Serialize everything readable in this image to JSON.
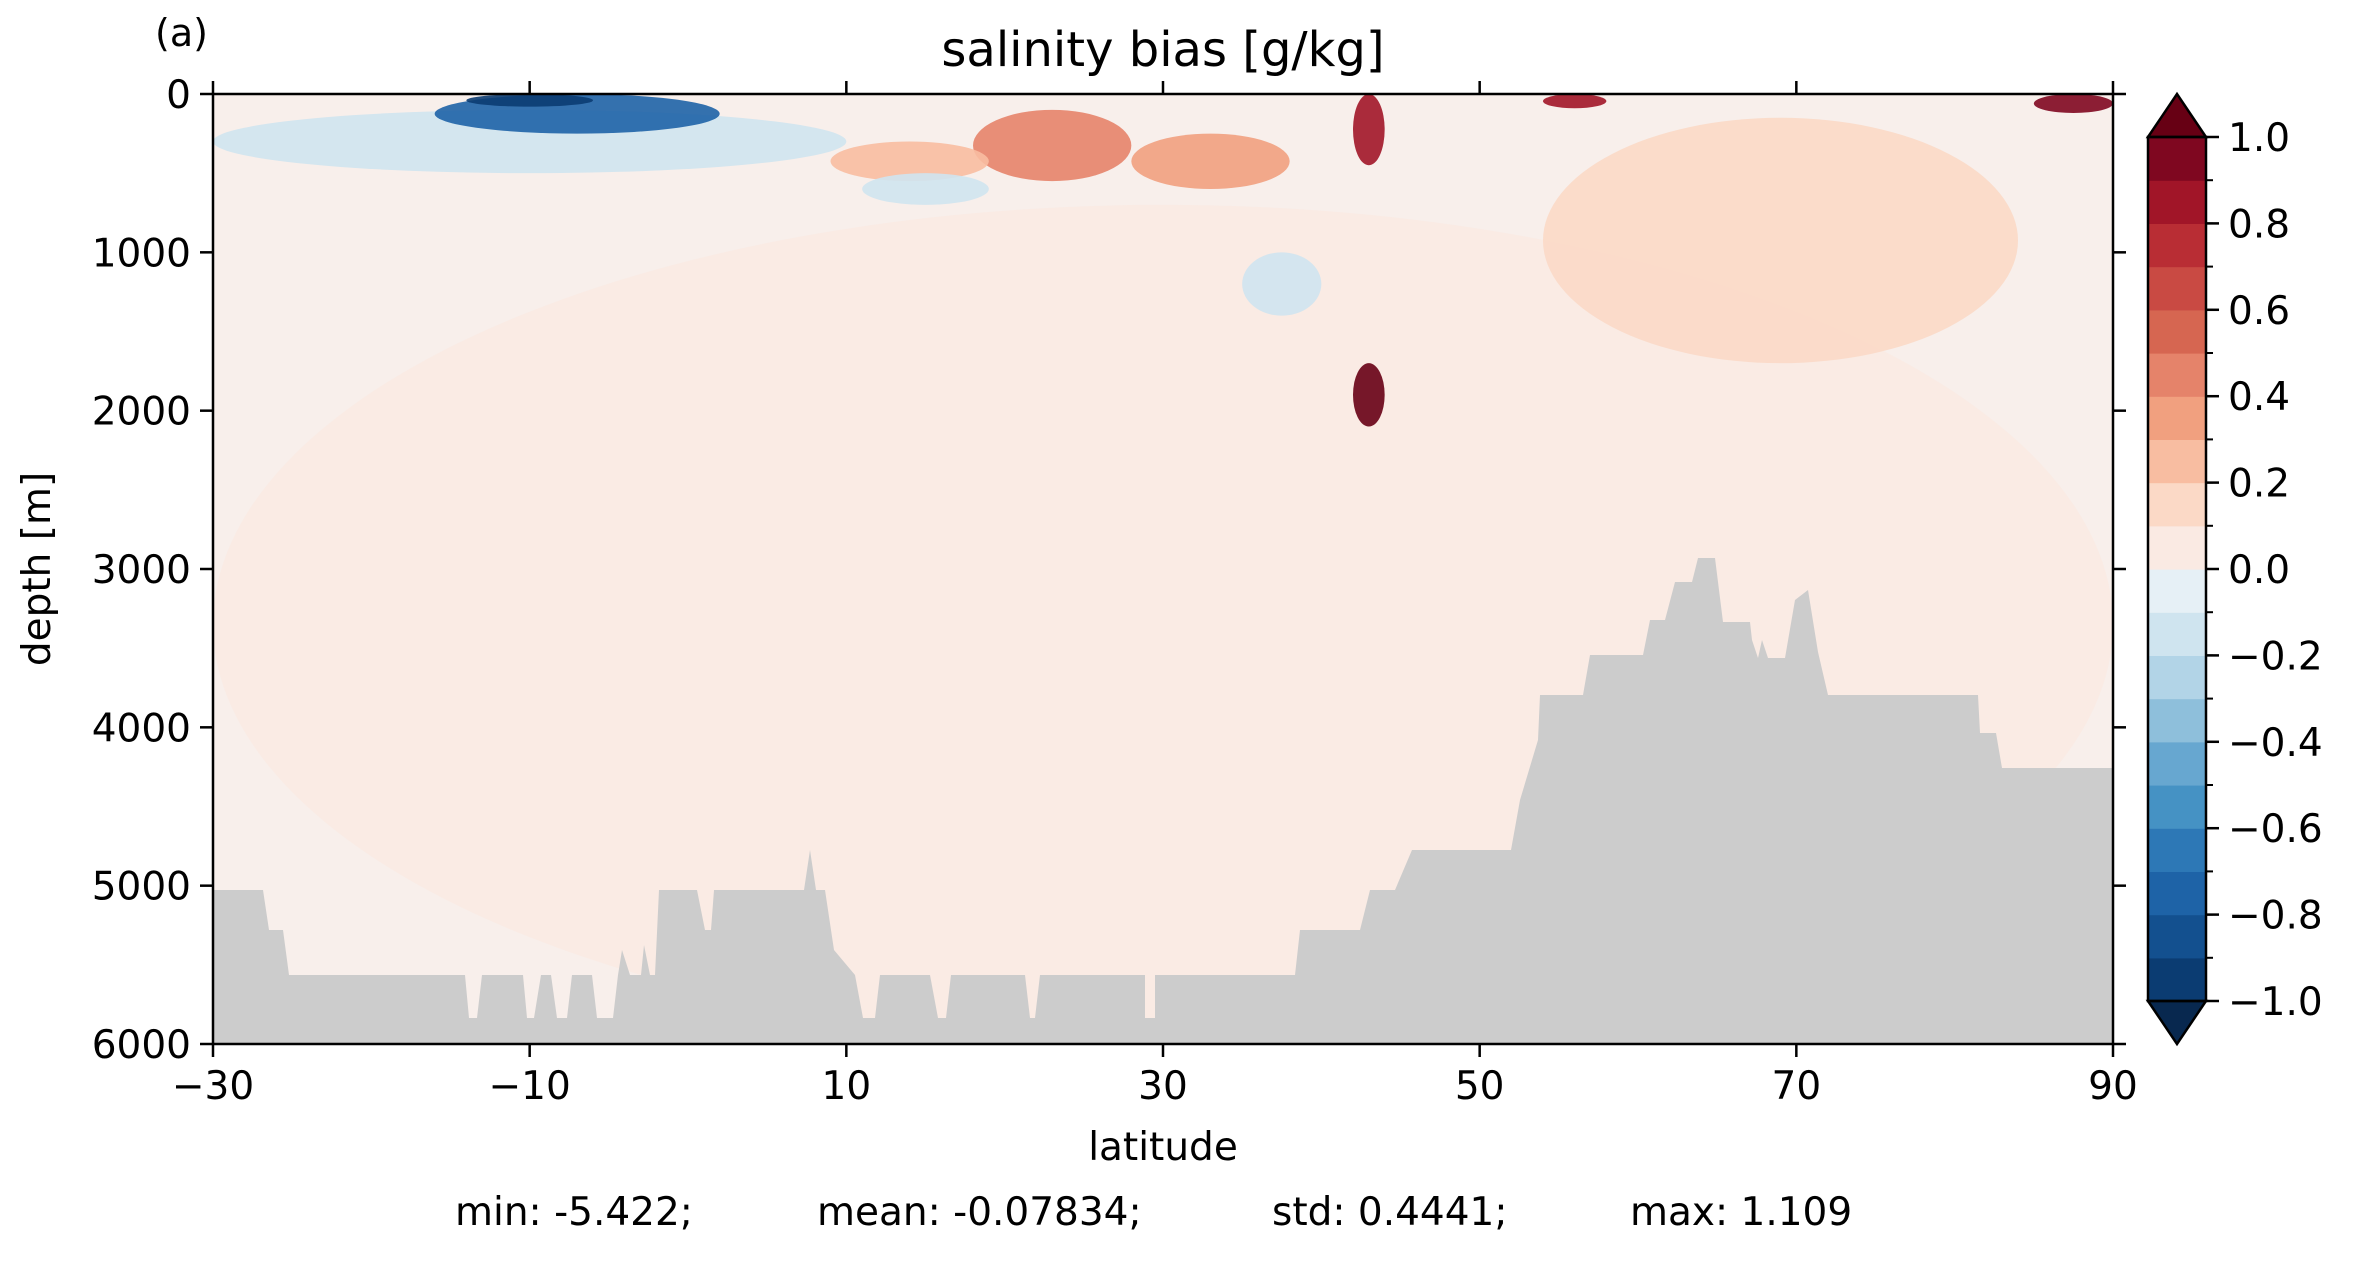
{
  "panel_label": "(a)",
  "chart_data": {
    "type": "heatmap",
    "title": "salinity bias [g/kg]",
    "xlabel": "latitude",
    "ylabel": "depth [m]",
    "xlim": [
      -30,
      90
    ],
    "ylim": [
      6000,
      0
    ],
    "x_ticks": [
      -30,
      -10,
      10,
      30,
      50,
      70,
      90
    ],
    "x_tick_labels": [
      "−30",
      "−10",
      "10",
      "30",
      "50",
      "70",
      "90"
    ],
    "y_ticks": [
      0,
      1000,
      2000,
      3000,
      4000,
      5000,
      6000
    ],
    "y_tick_labels": [
      "0",
      "1000",
      "2000",
      "3000",
      "4000",
      "5000",
      "6000"
    ],
    "colorbar": {
      "colormap": "RdBu_r",
      "extend": "both",
      "levels": [
        -1.0,
        -0.9,
        -0.8,
        -0.7,
        -0.6,
        -0.5,
        -0.4,
        -0.3,
        -0.2,
        -0.1,
        0.0,
        0.1,
        0.2,
        0.3,
        0.4,
        0.5,
        0.6,
        0.7,
        0.8,
        0.9,
        1.0
      ],
      "tick_values": [
        1.0,
        0.8,
        0.6,
        0.4,
        0.2,
        0.0,
        -0.2,
        -0.4,
        -0.6,
        -0.8,
        -1.0
      ],
      "tick_labels": [
        "1.0",
        "0.8",
        "0.6",
        "0.4",
        "0.2",
        "0.0",
        "−0.2",
        "−0.4",
        "−0.6",
        "−0.8",
        "−1.0"
      ],
      "colors": [
        "#0b3c72",
        "#13508f",
        "#1e63a7",
        "#2d78b6",
        "#4592c4",
        "#67a7d0",
        "#8ebfdb",
        "#b2d4e7",
        "#cfe4ef",
        "#e6f0f6",
        "#faeae3",
        "#fbd9c6",
        "#f8bda1",
        "#f1a07f",
        "#e5836a",
        "#d66651",
        "#c94a43",
        "#b92d34",
        "#a11528",
        "#7f0720"
      ],
      "extend_low_color": "#08284f",
      "extend_high_color": "#670014"
    },
    "field_regions": [
      {
        "lat": [
          -16,
          2
        ],
        "depth": [
          0,
          250
        ],
        "value": -0.75
      },
      {
        "lat": [
          -14,
          -6
        ],
        "depth": [
          0,
          80
        ],
        "value": -0.95
      },
      {
        "lat": [
          -30,
          10
        ],
        "depth": [
          100,
          500
        ],
        "value": -0.15
      },
      {
        "lat": [
          18,
          28
        ],
        "depth": [
          100,
          550
        ],
        "value": 0.45
      },
      {
        "lat": [
          28,
          38
        ],
        "depth": [
          250,
          600
        ],
        "value": 0.35
      },
      {
        "lat": [
          9,
          19
        ],
        "depth": [
          300,
          550
        ],
        "value": 0.25
      },
      {
        "lat": [
          42,
          44
        ],
        "depth": [
          0,
          450
        ],
        "value": 0.85
      },
      {
        "lat": [
          42,
          44
        ],
        "depth": [
          1700,
          2100
        ],
        "value": 1.05
      },
      {
        "lat": [
          54,
          58
        ],
        "depth": [
          0,
          90
        ],
        "value": 0.8
      },
      {
        "lat": [
          85,
          90
        ],
        "depth": [
          0,
          120
        ],
        "value": 0.9
      },
      {
        "lat": [
          54,
          84
        ],
        "depth": [
          150,
          1700
        ],
        "value": 0.15
      },
      {
        "lat": [
          35,
          40
        ],
        "depth": [
          1000,
          1400
        ],
        "value": -0.15
      },
      {
        "lat": [
          11,
          19
        ],
        "depth": [
          500,
          700
        ],
        "value": -0.12
      },
      {
        "lat": [
          -30,
          90
        ],
        "depth": [
          700,
          6000
        ],
        "value": 0.05
      }
    ],
    "stats": {
      "min": "min: -5.422;",
      "mean": "mean: -0.07834;",
      "std": "std: 0.4441;",
      "max": "max: 1.109"
    }
  }
}
